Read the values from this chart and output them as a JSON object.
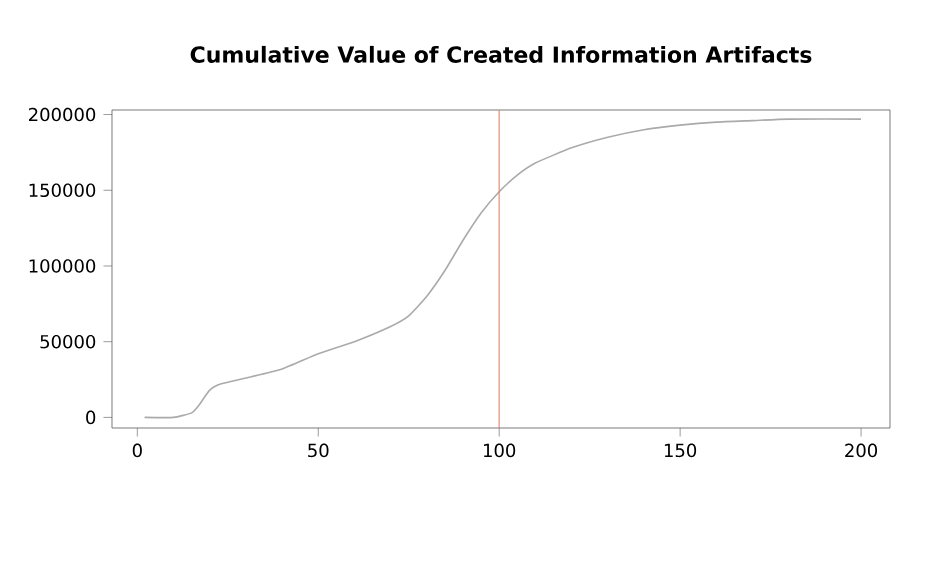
{
  "chart_data": {
    "type": "line",
    "title": "Cumulative Value of Created Information Artifacts",
    "x": [
      2,
      10,
      15,
      17,
      20,
      23,
      30,
      40,
      50,
      60,
      70,
      75,
      80,
      85,
      90,
      95,
      100,
      105,
      110,
      120,
      130,
      140,
      150,
      160,
      170,
      180,
      200
    ],
    "series": [
      {
        "color": "#aaaaaa",
        "values": [
          0,
          0,
          3000,
          8000,
          18000,
          22000,
          26000,
          32000,
          42000,
          50000,
          60000,
          67000,
          80000,
          97000,
          117000,
          135000,
          149000,
          160000,
          168000,
          178000,
          185000,
          190000,
          193000,
          195000,
          196000,
          197000,
          197000
        ]
      }
    ],
    "xlim": [
      -7,
      208
    ],
    "ylim": [
      -7000,
      203000
    ],
    "xticks": [
      0,
      50,
      100,
      150,
      200
    ],
    "yticks": [
      0,
      50000,
      100000,
      150000,
      200000
    ],
    "ref_lines": [
      {
        "axis": "x",
        "value": 100,
        "color": "#e08070"
      }
    ],
    "grid": false
  }
}
